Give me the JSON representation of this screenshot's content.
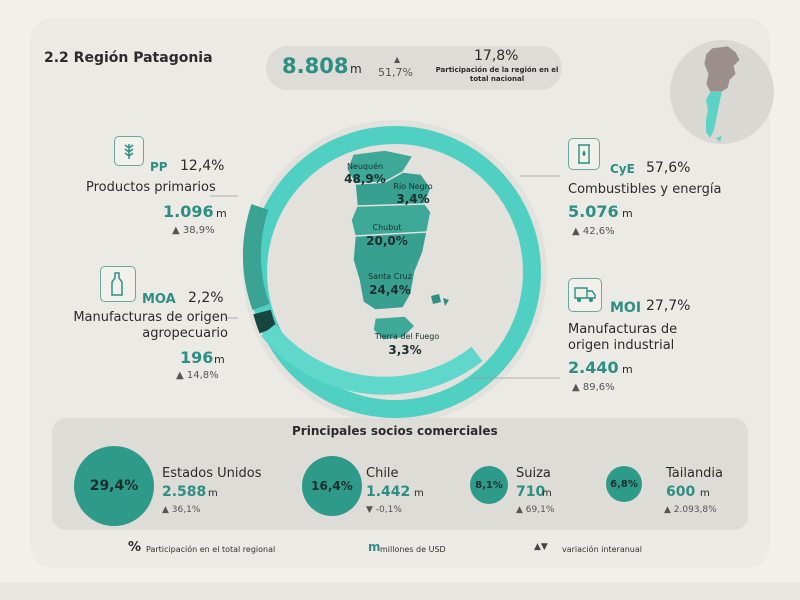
{
  "title": "2.2 Región Patagonia",
  "summary": {
    "value": "8.808",
    "unit": "m",
    "variation": "51,7%",
    "share": "17,8%",
    "share_label": "Participación de la región en el total nacional"
  },
  "units": {
    "m": "m"
  },
  "provinces": [
    {
      "name": "Neuquén",
      "share": "48,9%"
    },
    {
      "name": "Río Negro",
      "share": "3,4%"
    },
    {
      "name": "Chubut",
      "share": "20,0%"
    },
    {
      "name": "Santa Cruz",
      "share": "24,4%"
    },
    {
      "name": "Tierra del Fuego",
      "share": "3,3%"
    }
  ],
  "sectors": {
    "pp": {
      "abbr": "PP",
      "share": "12,4%",
      "label": "Productos primarios",
      "value": "1.096",
      "variation": "▲ 38,9%"
    },
    "moa": {
      "abbr": "MOA",
      "share": "2,2%",
      "label": "Manufacturas de origen agropecuario",
      "value": "196",
      "variation": "▲ 14,8%"
    },
    "cye": {
      "abbr": "CyE",
      "share": "57,6%",
      "label": "Combustibles y energía",
      "value": "5.076",
      "variation": "▲ 42,6%"
    },
    "moi": {
      "abbr": "MOI",
      "share": "27,7%",
      "label": "Manufacturas de origen industrial",
      "value": "2.440",
      "variation": "▲ 89,6%"
    }
  },
  "partners_title": "Principales socios comerciales",
  "partners": [
    {
      "name": "Estados Unidos",
      "share": "29,4%",
      "value": "2.588",
      "variation": "▲ 36,1%"
    },
    {
      "name": "Chile",
      "share": "16,4%",
      "value": "1.442",
      "variation": "▼ -0,1%"
    },
    {
      "name": "Suiza",
      "share": "8,1%",
      "value": "710",
      "variation": "▲ 69,1%"
    },
    {
      "name": "Tailandia",
      "share": "6,8%",
      "value": "600",
      "variation": "▲ 2.093,8%"
    }
  ],
  "legend": [
    {
      "symbol": "%",
      "text": "Participación en el total regional"
    },
    {
      "symbol": "m",
      "text": "millones de USD"
    },
    {
      "symbol": "▲▼",
      "text": "variación interanual"
    }
  ],
  "colors": {
    "accent": "#2d8f83",
    "ring": "#4fd0c3",
    "dark": "#16463f"
  }
}
